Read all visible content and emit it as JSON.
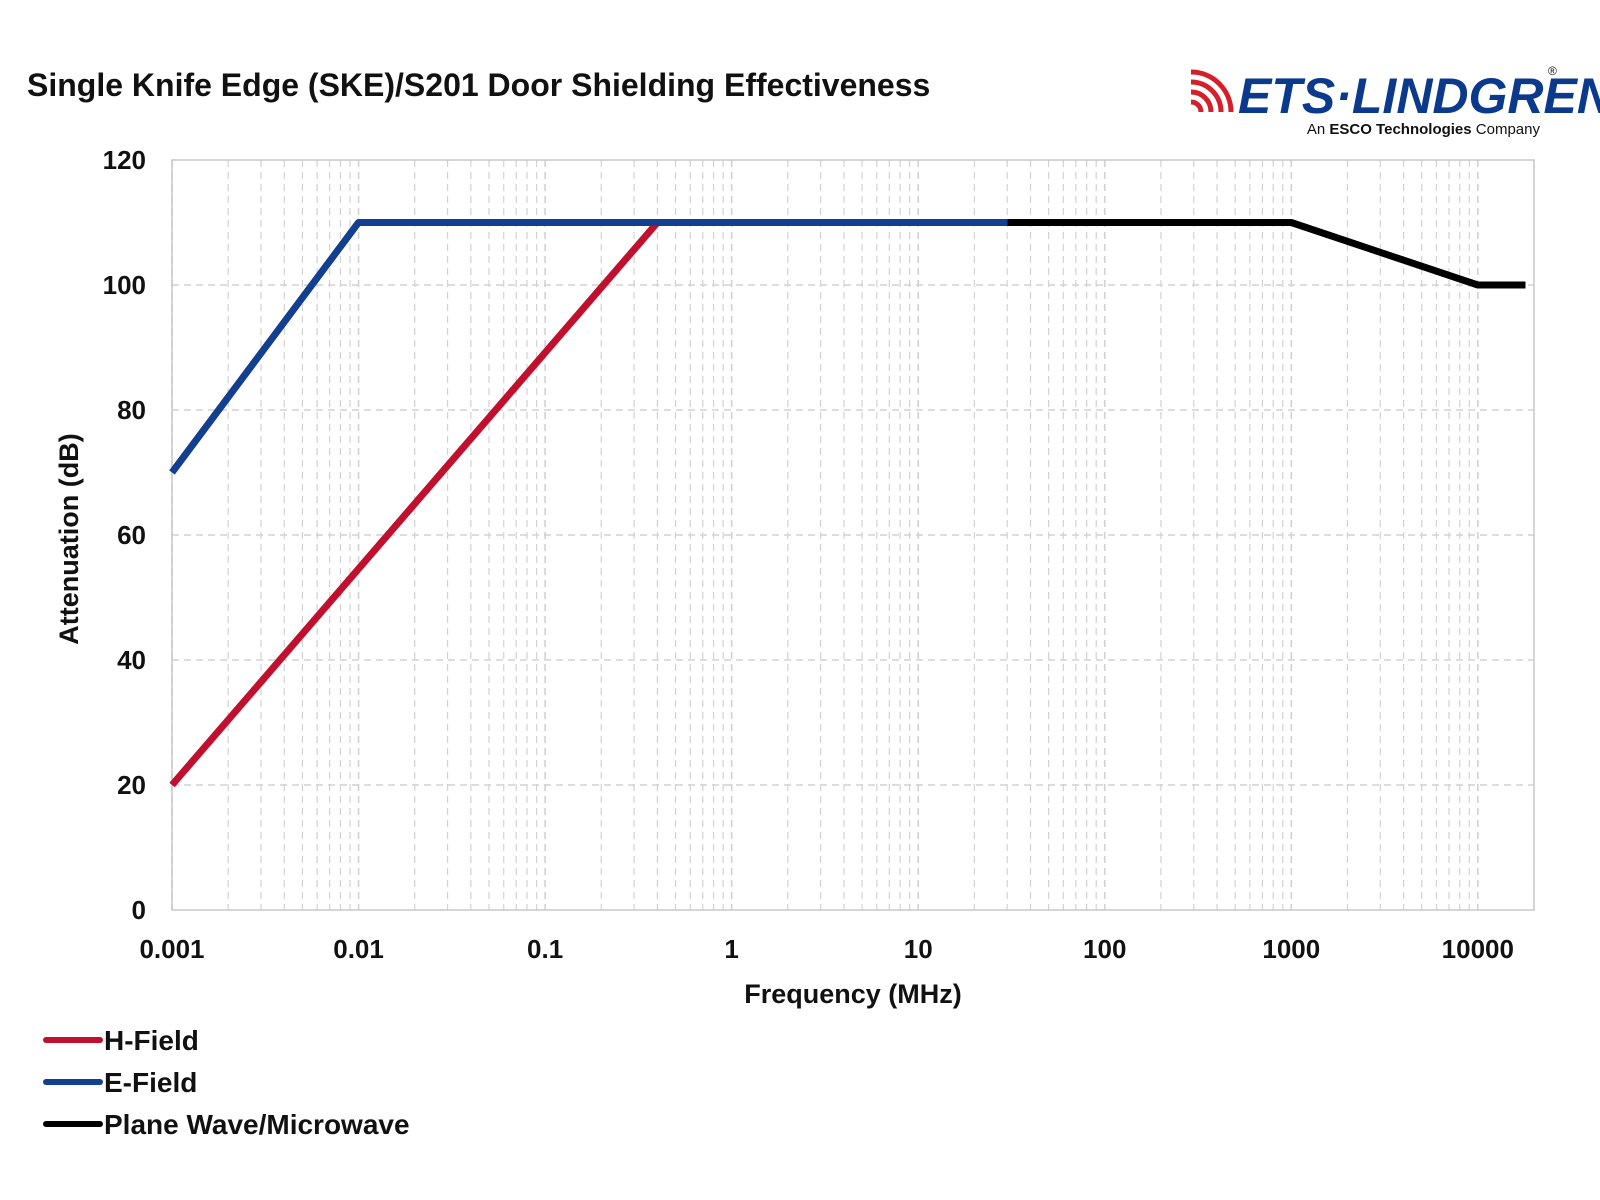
{
  "chart_data": {
    "type": "line",
    "title": "Single Knife Edge (SKE)/S201 Door Shielding Effectiveness",
    "xlabel": "Frequency (MHz)",
    "ylabel": "Attenuation (dB)",
    "x_scale": "log",
    "xlim": [
      0.001,
      20000
    ],
    "ylim": [
      0,
      120
    ],
    "x_ticks": [
      "0.001",
      "0.01",
      "0.1",
      "1",
      "10",
      "100",
      "1000",
      "10000"
    ],
    "y_ticks": [
      "0",
      "20",
      "40",
      "60",
      "80",
      "100",
      "120"
    ],
    "grid": true,
    "legend_position": "bottom-left",
    "series": [
      {
        "name": "H-Field",
        "color": "#c0102e",
        "x": [
          0.001,
          0.4
        ],
        "y": [
          20,
          110
        ]
      },
      {
        "name": "E-Field",
        "color": "#123f8f",
        "x": [
          0.001,
          0.01,
          30
        ],
        "y": [
          70,
          110,
          110
        ]
      },
      {
        "name": "Plane Wave/Microwave",
        "color": "#000000",
        "x": [
          30,
          1000,
          10000,
          18000
        ],
        "y": [
          110,
          110,
          100,
          100
        ]
      }
    ]
  },
  "logo": {
    "name": "ETS·LINDGREN",
    "registered": "®",
    "tagline_prefix": "An ",
    "tagline_brand": "ESCO Technologies",
    "tagline_suffix": " Company",
    "wave_color": "#d4202a",
    "text_color": "#0b3a8c"
  }
}
